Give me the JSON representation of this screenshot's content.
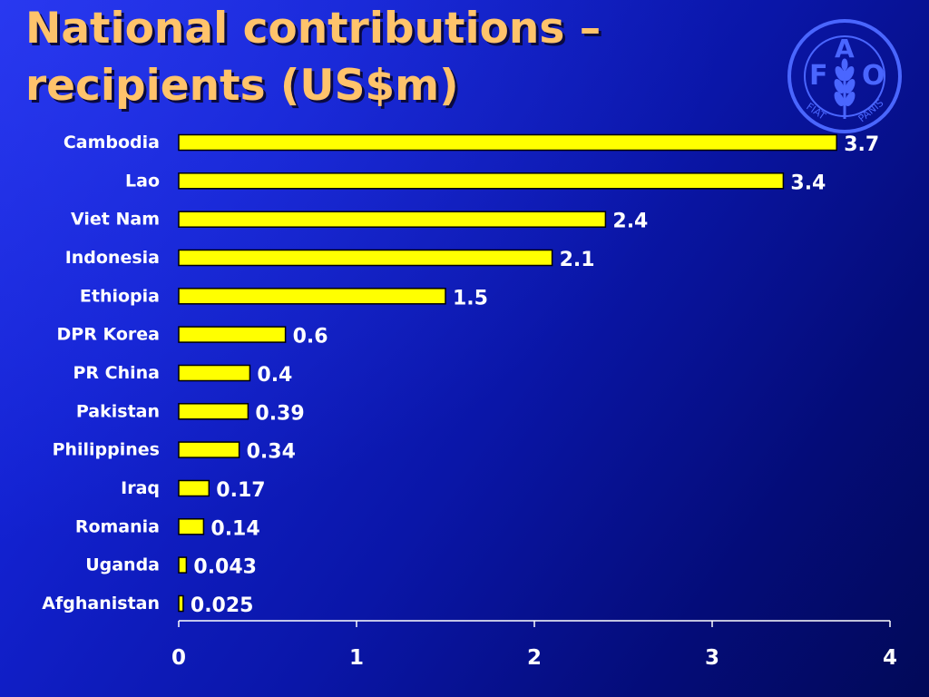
{
  "slide": {
    "title_line1": "National contributions –",
    "title_line2": "recipients (US$m)"
  },
  "logo": {
    "letters": [
      "F",
      "A",
      "O"
    ],
    "motto_left": "FIAT",
    "motto_right": "PANIS",
    "color": "#4a66ff"
  },
  "chart_data": {
    "type": "bar",
    "orientation": "horizontal",
    "categories": [
      "Cambodia",
      "Lao",
      "Viet Nam",
      "Indonesia",
      "Ethiopia",
      "DPR Korea",
      "PR China",
      "Pakistan",
      "Philippines",
      "Iraq",
      "Romania",
      "Uganda",
      "Afghanistan"
    ],
    "values": [
      3.7,
      3.4,
      2.4,
      2.1,
      1.5,
      0.6,
      0.4,
      0.39,
      0.34,
      0.17,
      0.14,
      0.043,
      0.025
    ],
    "data_labels": [
      "3.7",
      "3.4",
      "2.4",
      "2.1",
      "1.5",
      "0.6",
      "0.4",
      "0.39",
      "0.34",
      "0.17",
      "0.14",
      "0.043",
      "0.025"
    ],
    "title": "National contributions – recipients (US$m)",
    "xlabel": "",
    "ylabel": "",
    "xlim": [
      0,
      4
    ],
    "xticks": [
      "0",
      "1",
      "2",
      "3",
      "4"
    ],
    "grid": false,
    "legend": "none",
    "bar_color": "#ffff00",
    "bar_edge_color": "#000000"
  }
}
